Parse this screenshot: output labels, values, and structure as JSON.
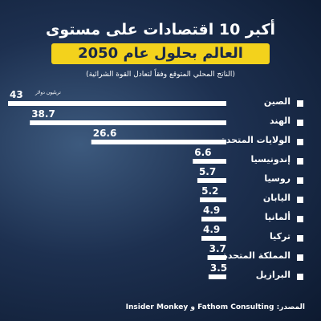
{
  "chart_data": {
    "type": "bar",
    "title": "أكبر 10 اقتصادات على مستوى",
    "title_highlight": "العالم بحلول عام 2050",
    "subtitle": "(الناتج المحلي المتوقع وفقاً لتعادل القوة الشرائية)",
    "unit": "تريليون دولار",
    "source": "المصدر: Fathom Consulting و Insider Monkey",
    "categories": [
      "الصين",
      "الهند",
      "الولايات المتحدة",
      "إندونيسيا",
      "روسيا",
      "اليابان",
      "ألمانيا",
      "تركيا",
      "المملكة المتحدة",
      "البرازيل"
    ],
    "values": [
      43,
      38.7,
      26.6,
      6.6,
      5.7,
      5.2,
      4.9,
      4.9,
      3.7,
      3.5
    ],
    "color": "#ffffff"
  }
}
